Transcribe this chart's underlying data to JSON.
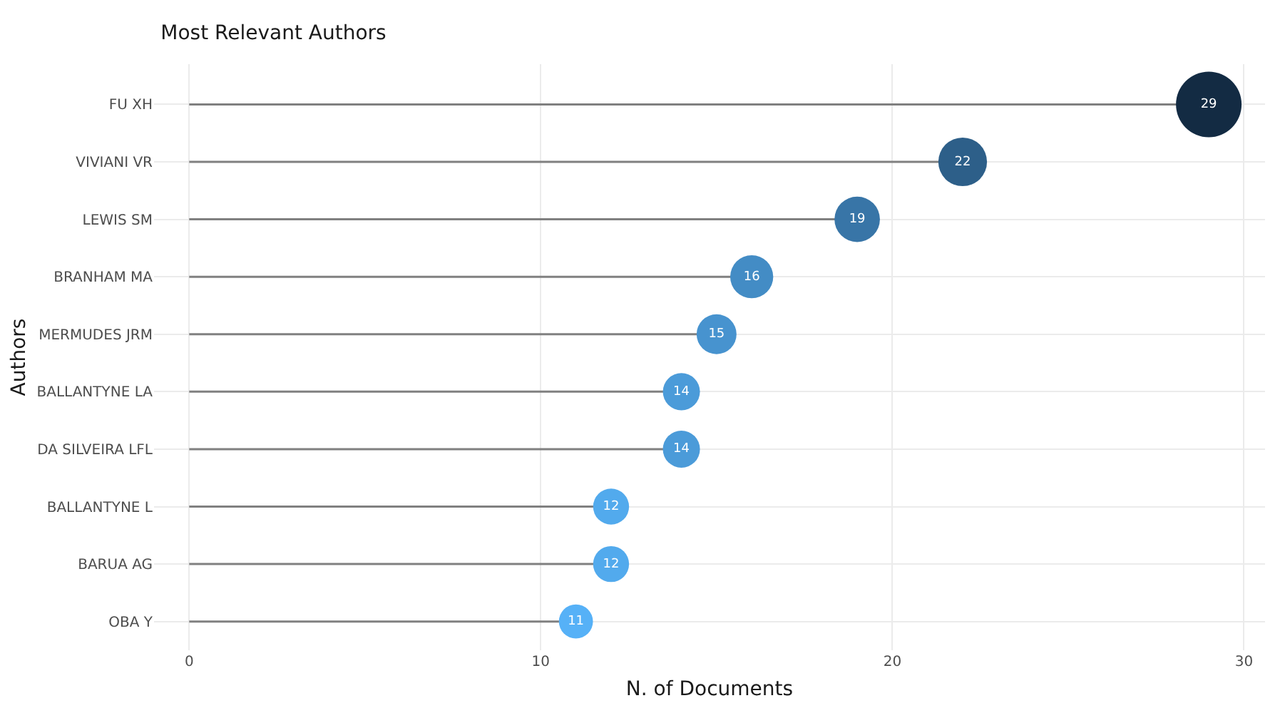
{
  "chart_data": {
    "type": "lollipop",
    "title": "Most Relevant Authors",
    "xlabel": "N. of Documents",
    "ylabel": "Authors",
    "orientation": "horizontal",
    "categories": [
      "FU XH",
      "VIVIANI VR",
      "LEWIS SM",
      "BRANHAM MA",
      "MERMUDES JRM",
      "BALLANTYNE LA",
      "DA SILVEIRA LFL",
      "BALLANTYNE L",
      "BARUA AG",
      "OBA Y"
    ],
    "values": [
      29,
      22,
      19,
      16,
      15,
      14,
      14,
      12,
      12,
      11
    ],
    "colors": [
      "#132b43",
      "#2d5f89",
      "#3875a7",
      "#438cc5",
      "#4793cf",
      "#4b9bd9",
      "#4b9bd9",
      "#52aaed",
      "#52aaed",
      "#56b1f7"
    ],
    "sizes": [
      1,
      0.55,
      0.48,
      0.43,
      0.37,
      0.32,
      0.32,
      0.3,
      0.3,
      0.27
    ],
    "xlim": [
      -1,
      30.6
    ],
    "xticks": [
      0,
      10,
      20,
      30
    ],
    "grid": true,
    "data_labels": true,
    "marker": "circle"
  }
}
